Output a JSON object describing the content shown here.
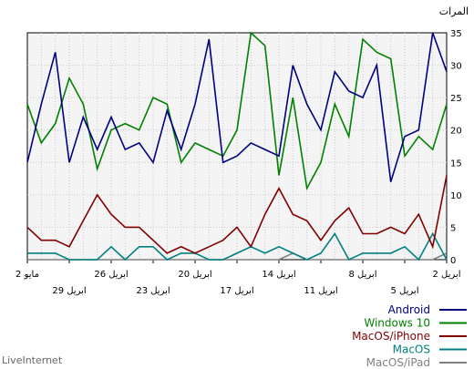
{
  "chart_data": {
    "type": "line",
    "unit_label": "المرات",
    "source_label": "LiveInternet",
    "ylim": [
      0,
      35
    ],
    "yticks": [
      0,
      5,
      10,
      15,
      20,
      25,
      30,
      35
    ],
    "x_direction": "right-to-left",
    "x_tick_labels": [
      {
        "day": 0,
        "label": "2 ابريل",
        "row": 1
      },
      {
        "day": 3,
        "label": "5 ابريل",
        "row": 2
      },
      {
        "day": 6,
        "label": "8 ابريل",
        "row": 1
      },
      {
        "day": 9,
        "label": "11 ابريل",
        "row": 2
      },
      {
        "day": 12,
        "label": "14 ابريل",
        "row": 1
      },
      {
        "day": 15,
        "label": "17 ابريل",
        "row": 2
      },
      {
        "day": 18,
        "label": "20 ابريل",
        "row": 1
      },
      {
        "day": 21,
        "label": "23 ابريل",
        "row": 2
      },
      {
        "day": 24,
        "label": "26 ابريل",
        "row": 1
      },
      {
        "day": 27,
        "label": "29 ابريل",
        "row": 2
      },
      {
        "day": 30,
        "label": "2 مايو",
        "row": 1
      }
    ],
    "series": [
      {
        "name": "Android",
        "color": "#000080",
        "values": [
          29,
          35,
          20,
          19,
          12,
          30,
          25,
          26,
          29,
          20,
          24,
          30,
          16,
          17,
          18,
          16,
          15,
          34,
          24,
          17,
          23,
          15,
          18,
          17,
          22,
          17,
          22,
          15,
          32,
          24,
          15
        ]
      },
      {
        "name": "Windows 10",
        "color": "#008000",
        "values": [
          24,
          17,
          19,
          16,
          31,
          32,
          34,
          19,
          24,
          15,
          11,
          25,
          13,
          33,
          35,
          20,
          16,
          17,
          18,
          15,
          24,
          25,
          20,
          21,
          20,
          14,
          24,
          28,
          21,
          18,
          24
        ]
      },
      {
        "name": "MacOS/iPhone",
        "color": "#800000",
        "values": [
          13,
          2,
          7,
          4,
          5,
          4,
          4,
          8,
          6,
          3,
          6,
          7,
          11,
          7,
          2,
          5,
          3,
          2,
          1,
          2,
          1,
          3,
          5,
          5,
          7,
          10,
          6,
          2,
          3,
          3,
          5
        ]
      },
      {
        "name": "MacOS",
        "color": "#008080",
        "values": [
          0,
          4,
          0,
          2,
          1,
          1,
          1,
          0,
          4,
          1,
          0,
          1,
          2,
          1,
          2,
          1,
          0,
          0,
          1,
          1,
          0,
          2,
          2,
          0,
          2,
          0,
          0,
          0,
          1,
          1,
          1
        ]
      },
      {
        "name": "MacOS/iPad",
        "color": "#808080",
        "values": [
          1,
          0,
          0,
          0,
          0,
          0,
          0,
          0,
          0,
          0,
          0,
          1,
          0,
          0,
          0,
          0,
          0,
          0,
          0,
          0,
          0,
          0,
          0,
          0,
          0,
          0,
          0,
          0,
          0,
          0,
          0
        ]
      }
    ]
  }
}
